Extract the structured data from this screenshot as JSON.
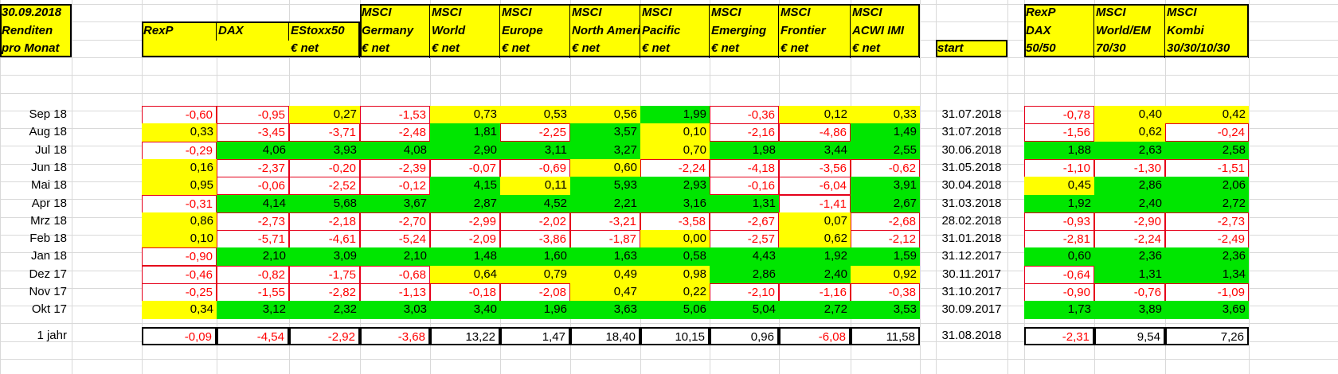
{
  "corner": [
    "30.09.2018",
    "Renditen",
    "pro Monat"
  ],
  "columns": [
    [
      "RexP",
      "",
      ""
    ],
    [
      "DAX",
      "",
      ""
    ],
    [
      "EStoxx50",
      "",
      "€ net"
    ],
    [
      "MSCI",
      "Germany",
      "€ net"
    ],
    [
      "MSCI",
      "World",
      "€ net"
    ],
    [
      "MSCI",
      "Europe",
      "€ net"
    ],
    [
      "MSCI",
      "North America",
      "€ net"
    ],
    [
      "MSCI",
      "Pacific",
      "€ net"
    ],
    [
      "MSCI",
      "Emerging",
      "€ net"
    ],
    [
      "MSCI",
      "Frontier",
      "€ net"
    ],
    [
      "MSCI",
      "ACWI IMI",
      "€ net"
    ]
  ],
  "start_header": "start",
  "combo_columns": [
    [
      "RexP",
      "DAX",
      "50/50"
    ],
    [
      "MSCI",
      "World/EM",
      "70/30"
    ],
    [
      "MSCI",
      "Kombi",
      "30/30/10/30"
    ]
  ],
  "rows": [
    {
      "label": "Sep 18",
      "values": [
        "-0,60",
        "-0,95",
        "0,27",
        "-1,53",
        "0,73",
        "0,53",
        "0,56",
        "1,99",
        "-0,36",
        "0,12",
        "0,33"
      ],
      "fills": [
        "w",
        "w",
        "y",
        "w",
        "y",
        "y",
        "y",
        "g",
        "w",
        "y",
        "y"
      ],
      "start": "31.07.2018",
      "combo": [
        "-0,78",
        "0,40",
        "0,42"
      ],
      "combo_fills": [
        "w",
        "y",
        "y"
      ]
    },
    {
      "label": "Aug 18",
      "values": [
        "0,33",
        "-3,45",
        "-3,71",
        "-2,48",
        "1,81",
        "-2,25",
        "3,57",
        "0,10",
        "-2,16",
        "-4,86",
        "1,49"
      ],
      "fills": [
        "y",
        "w",
        "w",
        "w",
        "g",
        "w",
        "g",
        "y",
        "w",
        "w",
        "g"
      ],
      "start": "31.07.2018",
      "combo": [
        "-1,56",
        "0,62",
        "-0,24"
      ],
      "combo_fills": [
        "w",
        "y",
        "w"
      ]
    },
    {
      "label": "Jul 18",
      "values": [
        "-0,29",
        "4,06",
        "3,93",
        "4,08",
        "2,90",
        "3,11",
        "3,27",
        "0,70",
        "1,98",
        "3,44",
        "2,55"
      ],
      "fills": [
        "w",
        "g",
        "g",
        "g",
        "g",
        "g",
        "g",
        "y",
        "g",
        "g",
        "g"
      ],
      "start": "30.06.2018",
      "combo": [
        "1,88",
        "2,63",
        "2,58"
      ],
      "combo_fills": [
        "g",
        "g",
        "g"
      ]
    },
    {
      "label": "Jun 18",
      "values": [
        "0,16",
        "-2,37",
        "-0,20",
        "-2,39",
        "-0,07",
        "-0,69",
        "0,60",
        "-2,24",
        "-4,18",
        "-3,56",
        "-0,62"
      ],
      "fills": [
        "y",
        "w",
        "w",
        "w",
        "w",
        "w",
        "y",
        "w",
        "w",
        "w",
        "w"
      ],
      "start": "31.05.2018",
      "combo": [
        "-1,10",
        "-1,30",
        "-1,51"
      ],
      "combo_fills": [
        "w",
        "w",
        "w"
      ]
    },
    {
      "label": "Mai 18",
      "values": [
        "0,95",
        "-0,06",
        "-2,52",
        "-0,12",
        "4,15",
        "0,11",
        "5,93",
        "2,93",
        "-0,16",
        "-6,04",
        "3,91"
      ],
      "fills": [
        "y",
        "w",
        "w",
        "w",
        "g",
        "y",
        "g",
        "g",
        "w",
        "w",
        "g"
      ],
      "start": "30.04.2018",
      "combo": [
        "0,45",
        "2,86",
        "2,06"
      ],
      "combo_fills": [
        "y",
        "g",
        "g"
      ]
    },
    {
      "label": "Apr 18",
      "values": [
        "-0,31",
        "4,14",
        "5,68",
        "3,67",
        "2,87",
        "4,52",
        "2,21",
        "3,16",
        "1,31",
        "-1,41",
        "2,67"
      ],
      "fills": [
        "w",
        "g",
        "g",
        "g",
        "g",
        "g",
        "g",
        "g",
        "g",
        "w",
        "g"
      ],
      "start": "31.03.2018",
      "combo": [
        "1,92",
        "2,40",
        "2,72"
      ],
      "combo_fills": [
        "g",
        "g",
        "g"
      ]
    },
    {
      "label": "Mrz 18",
      "values": [
        "0,86",
        "-2,73",
        "-2,18",
        "-2,70",
        "-2,99",
        "-2,02",
        "-3,21",
        "-3,58",
        "-2,67",
        "0,07",
        "-2,68"
      ],
      "fills": [
        "y",
        "w",
        "w",
        "w",
        "w",
        "w",
        "w",
        "w",
        "w",
        "y",
        "w"
      ],
      "start": "28.02.2018",
      "combo": [
        "-0,93",
        "-2,90",
        "-2,73"
      ],
      "combo_fills": [
        "w",
        "w",
        "w"
      ]
    },
    {
      "label": "Feb 18",
      "values": [
        "0,10",
        "-5,71",
        "-4,61",
        "-5,24",
        "-2,09",
        "-3,86",
        "-1,87",
        "0,00",
        "-2,57",
        "0,62",
        "-2,12"
      ],
      "fills": [
        "y",
        "w",
        "w",
        "w",
        "w",
        "w",
        "w",
        "y",
        "w",
        "y",
        "w"
      ],
      "start": "31.01.2018",
      "combo": [
        "-2,81",
        "-2,24",
        "-2,49"
      ],
      "combo_fills": [
        "w",
        "w",
        "w"
      ]
    },
    {
      "label": "Jan 18",
      "values": [
        "-0,90",
        "2,10",
        "3,09",
        "2,10",
        "1,48",
        "1,60",
        "1,63",
        "0,58",
        "4,43",
        "1,92",
        "1,59"
      ],
      "fills": [
        "w",
        "g",
        "g",
        "g",
        "g",
        "g",
        "g",
        "g",
        "g",
        "g",
        "g"
      ],
      "start": "31.12.2017",
      "combo": [
        "0,60",
        "2,36",
        "2,36"
      ],
      "combo_fills": [
        "g",
        "g",
        "g"
      ]
    },
    {
      "label": "Dez 17",
      "values": [
        "-0,46",
        "-0,82",
        "-1,75",
        "-0,68",
        "0,64",
        "0,79",
        "0,49",
        "0,98",
        "2,86",
        "2,40",
        "0,92"
      ],
      "fills": [
        "w",
        "w",
        "w",
        "w",
        "y",
        "y",
        "y",
        "y",
        "g",
        "g",
        "y"
      ],
      "start": "30.11.2017",
      "combo": [
        "-0,64",
        "1,31",
        "1,34"
      ],
      "combo_fills": [
        "w",
        "g",
        "g"
      ]
    },
    {
      "label": "Nov 17",
      "values": [
        "-0,25",
        "-1,55",
        "-2,82",
        "-1,13",
        "-0,18",
        "-2,08",
        "0,47",
        "0,22",
        "-2,10",
        "-1,16",
        "-0,38"
      ],
      "fills": [
        "w",
        "w",
        "w",
        "w",
        "w",
        "w",
        "y",
        "y",
        "w",
        "w",
        "w"
      ],
      "start": "31.10.2017",
      "combo": [
        "-0,90",
        "-0,76",
        "-1,09"
      ],
      "combo_fills": [
        "w",
        "w",
        "w"
      ]
    },
    {
      "label": "Okt 17",
      "values": [
        "0,34",
        "3,12",
        "2,32",
        "3,03",
        "3,40",
        "1,96",
        "3,63",
        "5,06",
        "5,04",
        "2,72",
        "3,53"
      ],
      "fills": [
        "y",
        "g",
        "g",
        "g",
        "g",
        "g",
        "g",
        "g",
        "g",
        "g",
        "g"
      ],
      "start": "30.09.2017",
      "combo": [
        "1,73",
        "3,89",
        "3,69"
      ],
      "combo_fills": [
        "g",
        "g",
        "g"
      ]
    }
  ],
  "year_row": {
    "label": "1 jahr",
    "values": [
      "-0,09",
      "-4,54",
      "-2,92",
      "-3,68",
      "13,22",
      "1,47",
      "18,40",
      "10,15",
      "0,96",
      "-6,08",
      "11,58"
    ],
    "start": "31.08.2018",
    "combo": [
      "-2,31",
      "9,54",
      "7,26"
    ]
  },
  "colors": {
    "yellow": "#ffff00",
    "green": "#00e600",
    "red_text": "#ff0000",
    "red_border": "#e5001a"
  }
}
